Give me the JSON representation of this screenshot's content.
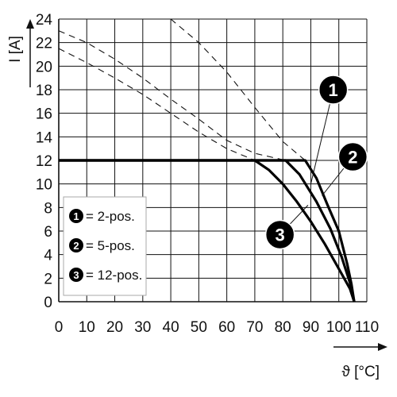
{
  "chart_data": {
    "type": "line",
    "xlabel": "ϑ [°C]",
    "ylabel": "I [A]",
    "xlim": [
      0,
      110
    ],
    "ylim": [
      0,
      24
    ],
    "xticks": [
      "0",
      "10",
      "20",
      "30",
      "40",
      "50",
      "60",
      "70",
      "80",
      "90",
      "100",
      "110"
    ],
    "yticks": [
      "0",
      "2",
      "4",
      "6",
      "8",
      "10",
      "12",
      "14",
      "16",
      "18",
      "20",
      "22",
      "24"
    ],
    "grid": true,
    "legend": {
      "placement": "bottom-left",
      "entries": [
        {
          "num": "1",
          "label": "= 2-pos."
        },
        {
          "num": "2",
          "label": "= 5-pos."
        },
        {
          "num": "3",
          "label": "= 12-pos."
        }
      ]
    },
    "series": [
      {
        "num": "1",
        "solid": [
          [
            0,
            12
          ],
          [
            88,
            12
          ],
          [
            92,
            10.5
          ],
          [
            96,
            8.2
          ],
          [
            100,
            6
          ],
          [
            103,
            3.2
          ],
          [
            104.5,
            1.5
          ],
          [
            105.5,
            0
          ]
        ],
        "dashed": [
          [
            40,
            24
          ],
          [
            50,
            22
          ],
          [
            60,
            19.5
          ],
          [
            70,
            16.5
          ],
          [
            80,
            13.6
          ],
          [
            88,
            12
          ]
        ]
      },
      {
        "num": "2",
        "solid": [
          [
            0,
            12
          ],
          [
            81,
            12
          ],
          [
            86,
            10.8
          ],
          [
            92,
            8.5
          ],
          [
            97,
            6.2
          ],
          [
            101,
            3.8
          ],
          [
            104,
            1.6
          ],
          [
            105.5,
            0
          ]
        ],
        "dashed": [
          [
            0,
            23
          ],
          [
            10,
            22
          ],
          [
            20,
            20.6
          ],
          [
            30,
            19
          ],
          [
            40,
            17.2
          ],
          [
            50,
            15.5
          ],
          [
            60,
            13.7
          ],
          [
            70,
            12.6
          ],
          [
            81,
            12
          ]
        ]
      },
      {
        "num": "3",
        "solid": [
          [
            0,
            12
          ],
          [
            70,
            12
          ],
          [
            75,
            11.2
          ],
          [
            80,
            10
          ],
          [
            85,
            8.5
          ],
          [
            90,
            6.8
          ],
          [
            95,
            4.9
          ],
          [
            100,
            2.8
          ],
          [
            104,
            1.1
          ],
          [
            105.5,
            0
          ]
        ],
        "dashed": [
          [
            0,
            21.5
          ],
          [
            10,
            20.3
          ],
          [
            20,
            19
          ],
          [
            30,
            17.6
          ],
          [
            40,
            16
          ],
          [
            50,
            14.4
          ],
          [
            60,
            13
          ],
          [
            70,
            12
          ]
        ]
      }
    ],
    "annotations": [
      {
        "num": "1",
        "target": [
          90,
          10
        ],
        "badge": [
          98,
          18
        ]
      },
      {
        "num": "2",
        "target": [
          94,
          9
        ],
        "badge": [
          105,
          12.3
        ]
      },
      {
        "num": "3",
        "target": [
          89,
          8.2
        ],
        "badge": [
          79,
          5.7
        ]
      }
    ]
  }
}
